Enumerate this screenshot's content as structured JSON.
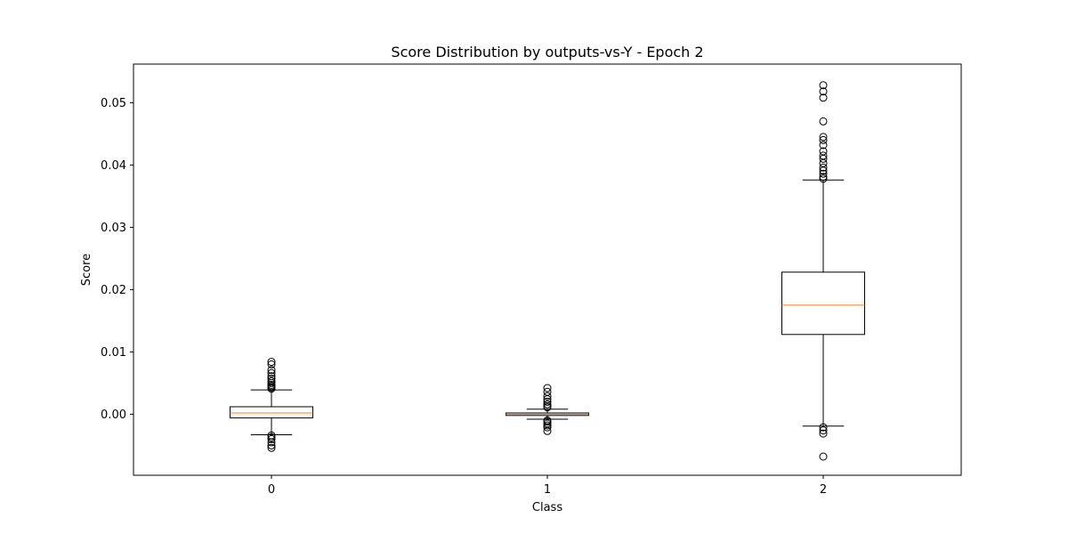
{
  "chart_data": {
    "type": "box",
    "title": "Score Distribution by outputs-vs-Y - Epoch 2",
    "xlabel": "Class",
    "ylabel": "Score",
    "categories": [
      "0",
      "1",
      "2"
    ],
    "ylim": [
      -0.0098,
      0.0562
    ],
    "yticks": [
      0.0,
      0.01,
      0.02,
      0.03,
      0.04,
      0.05
    ],
    "ytick_labels": [
      "0.00",
      "0.01",
      "0.02",
      "0.03",
      "0.04",
      "0.05"
    ],
    "grid": false,
    "colors": {
      "box": "#000000",
      "median": "#ff7f0e",
      "flier": "#000000",
      "background": "#ffffff"
    },
    "boxes": [
      {
        "category": "0",
        "whisker_low": -0.0033,
        "q1": -0.0006,
        "median": 0.0002,
        "q3": 0.0012,
        "whisker_high": 0.0039,
        "fliers": [
          0.0084,
          0.008,
          0.0071,
          0.0066,
          0.0061,
          0.0057,
          0.0053,
          0.005,
          0.0047,
          0.0045,
          0.0043,
          0.0041,
          -0.0034,
          -0.0037,
          -0.004,
          -0.0045,
          -0.005,
          -0.0054
        ]
      },
      {
        "category": "1",
        "whisker_low": -0.0008,
        "q1": -0.0002,
        "median": 0.0,
        "q3": 0.0002,
        "whisker_high": 0.0008,
        "fliers": [
          0.0042,
          0.0036,
          0.0029,
          0.0024,
          0.002,
          0.0016,
          0.0013,
          0.0011,
          -0.001,
          -0.0012,
          -0.0015,
          -0.0018,
          -0.0021,
          -0.0027
        ]
      },
      {
        "category": "2",
        "whisker_low": -0.0019,
        "q1": 0.0128,
        "median": 0.0175,
        "q3": 0.0228,
        "whisker_high": 0.0376,
        "fliers": [
          0.0528,
          0.0518,
          0.0508,
          0.047,
          0.0445,
          0.044,
          0.0432,
          0.0422,
          0.0415,
          0.041,
          0.0403,
          0.0396,
          0.0391,
          0.0386,
          0.0381,
          0.0378,
          -0.0021,
          -0.0026,
          -0.0031,
          -0.0068
        ]
      }
    ]
  }
}
